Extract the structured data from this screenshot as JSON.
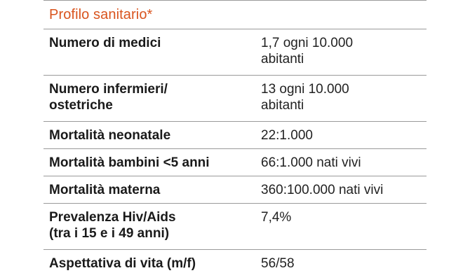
{
  "table": {
    "title": "Profilo sanitario*",
    "rows": [
      {
        "label_lines": [
          "Numero di medici"
        ],
        "value_lines": [
          "1,7 ogni 10.000",
          "abitanti"
        ]
      },
      {
        "label_lines": [
          "Numero infermieri/",
          "ostetriche"
        ],
        "value_lines": [
          "13 ogni 10.000",
          "abitanti"
        ]
      },
      {
        "label_lines": [
          "Mortalità neonatale"
        ],
        "value_lines": [
          "22:1.000"
        ]
      },
      {
        "label_lines": [
          "Mortalità bambini <5 anni"
        ],
        "value_lines": [
          "66:1.000 nati vivi"
        ]
      },
      {
        "label_lines": [
          "Mortalità materna"
        ],
        "value_lines": [
          "360:100.000 nati vivi"
        ]
      },
      {
        "label_lines": [
          "Prevalenza Hiv/Aids",
          "(tra i 15 e i 49 anni)"
        ],
        "value_lines": [
          "7,4%"
        ]
      },
      {
        "label_lines": [
          "Aspettativa di vita (m/f)"
        ],
        "value_lines": [
          "56/58"
        ]
      }
    ]
  },
  "colors": {
    "title": "#d9541e",
    "text": "#1a1a1a",
    "rule": "#9a9a9a"
  }
}
